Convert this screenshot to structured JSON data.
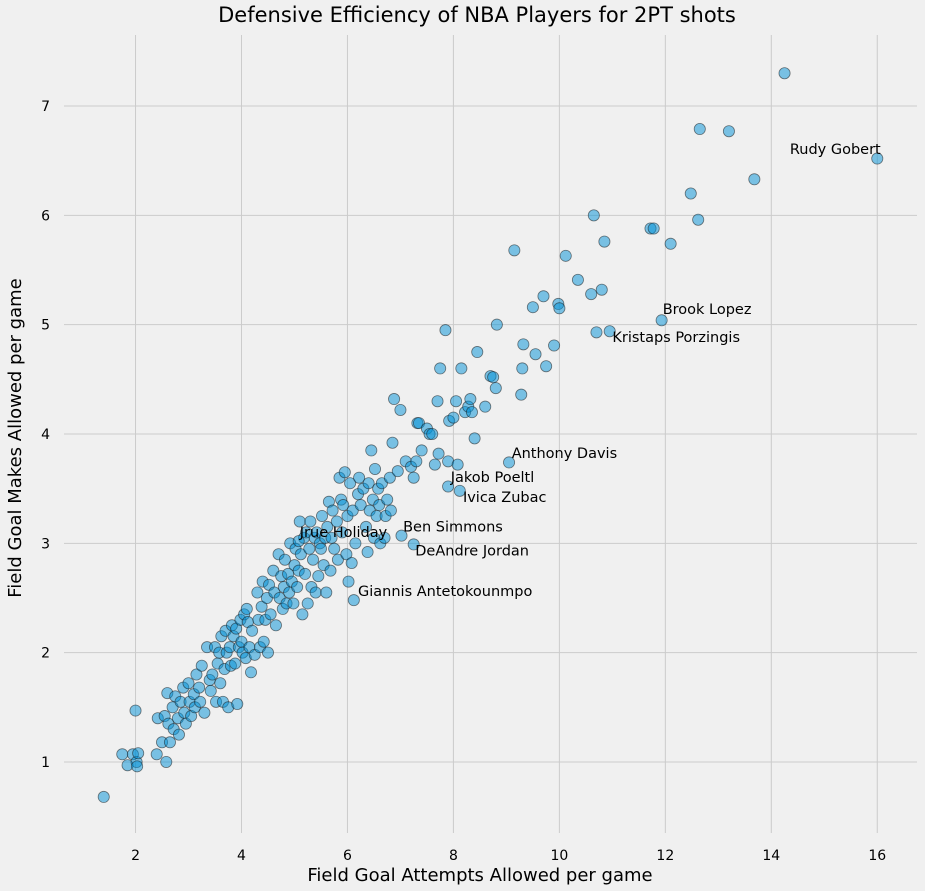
{
  "chart_data": {
    "type": "scatter",
    "title": "Defensive Efficiency of NBA Players for 2PT shots",
    "xlabel": "Field Goal Attempts Allowed per game",
    "ylabel": "Field Goal Makes Allowed per game",
    "xlim": [
      0.65,
      16.75
    ],
    "ylim": [
      0.35,
      7.65
    ],
    "xticks": [
      2,
      4,
      6,
      8,
      10,
      12,
      14,
      16
    ],
    "yticks": [
      1,
      2,
      3,
      4,
      5,
      6,
      7
    ],
    "grid": true,
    "series": [
      {
        "color": "#008fd5",
        "points": [
          [
            1.4,
            0.68
          ],
          [
            1.75,
            1.07
          ],
          [
            1.85,
            0.97
          ],
          [
            1.95,
            1.07
          ],
          [
            2.02,
            1.0
          ],
          [
            2.05,
            1.08
          ],
          [
            2.03,
            0.96
          ],
          [
            2.0,
            1.47
          ],
          [
            2.4,
            1.07
          ],
          [
            2.42,
            1.4
          ],
          [
            2.5,
            1.18
          ],
          [
            2.55,
            1.42
          ],
          [
            2.58,
            1.0
          ],
          [
            2.6,
            1.63
          ],
          [
            2.62,
            1.35
          ],
          [
            2.65,
            1.18
          ],
          [
            2.7,
            1.5
          ],
          [
            2.72,
            1.3
          ],
          [
            2.75,
            1.6
          ],
          [
            2.8,
            1.4
          ],
          [
            2.82,
            1.25
          ],
          [
            2.85,
            1.55
          ],
          [
            2.9,
            1.68
          ],
          [
            2.92,
            1.45
          ],
          [
            2.95,
            1.35
          ],
          [
            3.0,
            1.72
          ],
          [
            3.02,
            1.55
          ],
          [
            3.05,
            1.42
          ],
          [
            3.1,
            1.62
          ],
          [
            3.12,
            1.5
          ],
          [
            3.15,
            1.8
          ],
          [
            3.2,
            1.68
          ],
          [
            3.22,
            1.55
          ],
          [
            3.25,
            1.88
          ],
          [
            3.3,
            1.45
          ],
          [
            3.35,
            2.05
          ],
          [
            3.4,
            1.75
          ],
          [
            3.42,
            1.65
          ],
          [
            3.45,
            1.8
          ],
          [
            3.5,
            2.05
          ],
          [
            3.52,
            1.55
          ],
          [
            3.55,
            1.9
          ],
          [
            3.58,
            2.0
          ],
          [
            3.6,
            1.72
          ],
          [
            3.62,
            2.15
          ],
          [
            3.65,
            1.55
          ],
          [
            3.68,
            1.85
          ],
          [
            3.7,
            2.2
          ],
          [
            3.72,
            2.0
          ],
          [
            3.75,
            1.5
          ],
          [
            3.78,
            2.05
          ],
          [
            3.8,
            1.88
          ],
          [
            3.82,
            2.25
          ],
          [
            3.85,
            2.15
          ],
          [
            3.88,
            1.9
          ],
          [
            3.9,
            2.22
          ],
          [
            3.92,
            1.53
          ],
          [
            3.95,
            2.05
          ],
          [
            3.98,
            2.3
          ],
          [
            4.0,
            2.1
          ],
          [
            4.02,
            2.0
          ],
          [
            4.05,
            2.35
          ],
          [
            4.08,
            1.95
          ],
          [
            4.1,
            2.4
          ],
          [
            4.12,
            2.28
          ],
          [
            4.15,
            2.05
          ],
          [
            4.18,
            1.82
          ],
          [
            4.2,
            2.2
          ],
          [
            4.25,
            1.98
          ],
          [
            4.3,
            2.55
          ],
          [
            4.32,
            2.3
          ],
          [
            4.35,
            2.05
          ],
          [
            4.38,
            2.42
          ],
          [
            4.4,
            2.65
          ],
          [
            4.42,
            2.1
          ],
          [
            4.45,
            2.3
          ],
          [
            4.48,
            2.5
          ],
          [
            4.5,
            2.0
          ],
          [
            4.52,
            2.62
          ],
          [
            4.55,
            2.35
          ],
          [
            4.6,
            2.75
          ],
          [
            4.62,
            2.55
          ],
          [
            4.65,
            2.25
          ],
          [
            4.7,
            2.9
          ],
          [
            4.72,
            2.5
          ],
          [
            4.75,
            2.7
          ],
          [
            4.78,
            2.4
          ],
          [
            4.8,
            2.6
          ],
          [
            4.82,
            2.85
          ],
          [
            4.85,
            2.45
          ],
          [
            4.88,
            2.72
          ],
          [
            4.9,
            2.55
          ],
          [
            4.92,
            3.0
          ],
          [
            4.95,
            2.65
          ],
          [
            4.98,
            2.45
          ],
          [
            5.0,
            2.8
          ],
          [
            5.02,
            2.95
          ],
          [
            5.05,
            2.6
          ],
          [
            5.08,
            2.75
          ],
          [
            5.1,
            3.2
          ],
          [
            5.12,
            2.9
          ],
          [
            5.15,
            2.35
          ],
          [
            5.18,
            3.05
          ],
          [
            5.2,
            2.72
          ],
          [
            5.22,
            3.1
          ],
          [
            5.25,
            2.45
          ],
          [
            5.28,
            2.95
          ],
          [
            5.3,
            3.2
          ],
          [
            5.32,
            2.6
          ],
          [
            5.35,
            2.85
          ],
          [
            5.38,
            3.05
          ],
          [
            5.4,
            2.55
          ],
          [
            5.42,
            3.1
          ],
          [
            5.45,
            2.7
          ],
          [
            5.48,
            3.0
          ],
          [
            5.5,
            2.95
          ],
          [
            5.52,
            3.25
          ],
          [
            5.55,
            2.8
          ],
          [
            5.58,
            3.05
          ],
          [
            5.6,
            2.55
          ],
          [
            5.62,
            3.15
          ],
          [
            5.65,
            3.38
          ],
          [
            5.68,
            2.75
          ],
          [
            5.7,
            3.05
          ],
          [
            5.72,
            3.3
          ],
          [
            5.75,
            2.95
          ],
          [
            5.8,
            3.2
          ],
          [
            5.82,
            2.85
          ],
          [
            5.85,
            3.6
          ],
          [
            5.88,
            3.4
          ],
          [
            5.9,
            3.1
          ],
          [
            5.92,
            3.35
          ],
          [
            5.95,
            3.65
          ],
          [
            5.98,
            2.9
          ],
          [
            6.0,
            3.25
          ],
          [
            6.02,
            2.65
          ],
          [
            6.05,
            3.55
          ],
          [
            6.08,
            2.82
          ],
          [
            6.1,
            3.3
          ],
          [
            6.15,
            3.0
          ],
          [
            6.2,
            3.45
          ],
          [
            6.22,
            3.6
          ],
          [
            6.25,
            3.35
          ],
          [
            6.3,
            3.5
          ],
          [
            6.35,
            3.15
          ],
          [
            6.38,
            2.92
          ],
          [
            6.4,
            3.55
          ],
          [
            6.42,
            3.3
          ],
          [
            6.45,
            3.85
          ],
          [
            6.48,
            3.4
          ],
          [
            6.5,
            3.05
          ],
          [
            6.52,
            3.68
          ],
          [
            6.55,
            3.25
          ],
          [
            6.58,
            3.5
          ],
          [
            6.6,
            3.35
          ],
          [
            6.62,
            3.0
          ],
          [
            6.65,
            3.55
          ],
          [
            6.7,
            3.05
          ],
          [
            6.72,
            3.25
          ],
          [
            6.75,
            3.4
          ],
          [
            6.8,
            3.6
          ],
          [
            6.82,
            3.3
          ],
          [
            6.85,
            3.92
          ],
          [
            6.88,
            4.32
          ],
          [
            6.95,
            3.66
          ],
          [
            7.0,
            4.22
          ],
          [
            7.1,
            3.75
          ],
          [
            7.2,
            3.7
          ],
          [
            7.25,
            3.6
          ],
          [
            7.3,
            3.75
          ],
          [
            7.32,
            4.1
          ],
          [
            7.35,
            4.1
          ],
          [
            7.4,
            3.85
          ],
          [
            7.5,
            4.05
          ],
          [
            7.55,
            4.0
          ],
          [
            7.6,
            4.0
          ],
          [
            7.65,
            3.72
          ],
          [
            7.7,
            4.3
          ],
          [
            7.72,
            3.82
          ],
          [
            7.75,
            4.6
          ],
          [
            7.85,
            4.95
          ],
          [
            7.9,
            3.75
          ],
          [
            7.92,
            4.12
          ],
          [
            8.0,
            4.15
          ],
          [
            8.05,
            4.3
          ],
          [
            8.08,
            3.72
          ],
          [
            8.15,
            4.6
          ],
          [
            8.22,
            4.2
          ],
          [
            8.28,
            4.25
          ],
          [
            8.32,
            4.32
          ],
          [
            8.35,
            4.2
          ],
          [
            8.4,
            3.96
          ],
          [
            8.45,
            4.75
          ],
          [
            8.6,
            4.25
          ],
          [
            8.7,
            4.53
          ],
          [
            8.75,
            4.52
          ],
          [
            8.8,
            4.42
          ],
          [
            8.82,
            5.0
          ],
          [
            9.15,
            5.68
          ],
          [
            9.28,
            4.36
          ],
          [
            9.3,
            4.6
          ],
          [
            9.32,
            4.82
          ],
          [
            9.5,
            5.16
          ],
          [
            9.55,
            4.73
          ],
          [
            9.7,
            5.26
          ],
          [
            9.75,
            4.62
          ],
          [
            9.9,
            4.81
          ],
          [
            9.98,
            5.19
          ],
          [
            10.0,
            5.15
          ],
          [
            10.12,
            5.63
          ],
          [
            10.35,
            5.41
          ],
          [
            10.6,
            5.28
          ],
          [
            10.65,
            6.0
          ],
          [
            10.7,
            4.93
          ],
          [
            10.8,
            5.32
          ],
          [
            10.85,
            5.76
          ],
          [
            11.72,
            5.88
          ],
          [
            11.78,
            5.88
          ],
          [
            12.1,
            5.74
          ],
          [
            12.48,
            6.2
          ],
          [
            12.62,
            5.96
          ],
          [
            12.65,
            6.79
          ],
          [
            13.2,
            6.77
          ],
          [
            13.68,
            6.33
          ],
          [
            14.25,
            7.3
          ],
          [
            16.0,
            6.52
          ],
          [
            11.93,
            5.04
          ],
          [
            10.95,
            4.94
          ],
          [
            9.05,
            3.74
          ],
          [
            7.9,
            3.52
          ],
          [
            8.12,
            3.48
          ],
          [
            7.02,
            3.07
          ],
          [
            7.25,
            2.99
          ],
          [
            5.08,
            3.02
          ],
          [
            6.12,
            2.48
          ]
        ]
      }
    ],
    "annotations": [
      {
        "label": "Rudy Gobert",
        "x": 16.0,
        "y": 6.52,
        "tx": 14.35,
        "ty": 6.56
      },
      {
        "label": "Brook Lopez",
        "x": 11.93,
        "y": 5.04,
        "tx": 11.95,
        "ty": 5.1
      },
      {
        "label": "Kristaps Porzingis",
        "x": 10.95,
        "y": 4.94,
        "tx": 11.0,
        "ty": 4.84
      },
      {
        "label": "Anthony Davis",
        "x": 9.05,
        "y": 3.74,
        "tx": 9.1,
        "ty": 3.78
      },
      {
        "label": "Jakob Poeltl",
        "x": 7.9,
        "y": 3.52,
        "tx": 7.95,
        "ty": 3.56
      },
      {
        "label": "Ivica Zubac",
        "x": 8.12,
        "y": 3.48,
        "tx": 8.18,
        "ty": 3.38
      },
      {
        "label": "Ben Simmons",
        "x": 7.02,
        "y": 3.07,
        "tx": 7.05,
        "ty": 3.11
      },
      {
        "label": "DeAndre Jordan",
        "x": 7.25,
        "y": 2.99,
        "tx": 7.28,
        "ty": 2.89
      },
      {
        "label": "Jrue Holiday",
        "x": 5.08,
        "y": 3.02,
        "tx": 5.1,
        "ty": 3.06
      },
      {
        "label": "Giannis Antetokounmpo",
        "x": 6.12,
        "y": 2.48,
        "tx": 6.2,
        "ty": 2.52
      }
    ]
  }
}
